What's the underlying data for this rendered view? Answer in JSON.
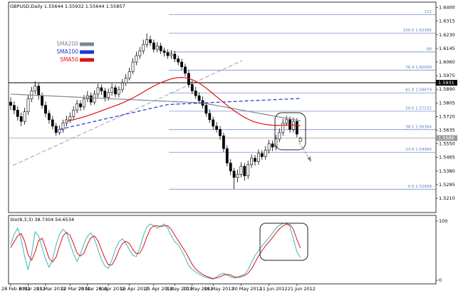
{
  "chart_data": [
    {
      "type": "candlestick",
      "title": "GBPUSD,Daily  1.55644 1.55932 1.55644 1.55857",
      "categories": [
        "28 Feb 2012",
        null,
        null,
        null,
        null,
        "6 Mar 2012",
        null,
        null,
        null,
        null,
        "13 Mar 2012",
        null,
        null,
        null,
        null,
        null,
        null,
        "22 Mar 2012",
        null,
        null,
        null,
        null,
        "29 Mar 2012",
        null,
        null,
        null,
        null,
        null,
        "6 Apr 2012",
        null,
        null,
        null,
        null,
        null,
        "16 Apr 2012",
        null,
        null,
        null,
        null,
        null,
        null,
        "25 Apr 2012",
        null,
        null,
        null,
        null,
        null,
        "3 May 2012",
        null,
        null,
        null,
        null,
        "10 May 2012",
        null,
        null,
        null,
        null,
        null,
        "18 May 2012",
        null,
        null,
        null,
        null,
        null,
        null,
        null,
        "30 May 2012",
        null,
        null,
        null,
        null,
        null,
        null,
        null,
        "11 Jun 2012",
        null,
        null,
        null,
        null,
        null,
        null,
        null,
        "21 Jun 2012",
        null
      ],
      "open": [
        1.581,
        1.579,
        1.576,
        1.572,
        1.569,
        1.575,
        1.583,
        1.588,
        1.591,
        1.585,
        1.579,
        1.574,
        1.57,
        1.566,
        1.562,
        1.564,
        1.568,
        1.57,
        1.572,
        1.576,
        1.58,
        1.578,
        1.583,
        1.585,
        1.581,
        1.586,
        1.59,
        1.588,
        1.584,
        1.587,
        1.59,
        1.586,
        1.589,
        1.593,
        1.596,
        1.6,
        1.606,
        1.61,
        1.613,
        1.617,
        1.62,
        1.618,
        1.614,
        1.616,
        1.613,
        1.612,
        1.61,
        1.611,
        1.608,
        1.606,
        1.603,
        1.599,
        1.592,
        1.588,
        1.585,
        1.582,
        1.579,
        1.574,
        1.57,
        1.566,
        1.564,
        1.56,
        1.552,
        1.543,
        1.538,
        1.534,
        1.536,
        1.541,
        1.535,
        1.542,
        1.546,
        1.544,
        1.549,
        1.547,
        1.551,
        1.555,
        1.553,
        1.558,
        1.562,
        1.568,
        1.57,
        1.564,
        1.569,
        1.55644
      ],
      "high": [
        1.584,
        1.5815,
        1.5785,
        1.5745,
        1.5775,
        1.5855,
        1.5905,
        1.594,
        1.593,
        1.587,
        1.5815,
        1.576,
        1.5725,
        1.568,
        1.5665,
        1.57,
        1.5725,
        1.5745,
        1.5785,
        1.5825,
        1.582,
        1.5855,
        1.588,
        1.587,
        1.5885,
        1.5925,
        1.592,
        1.59,
        1.5895,
        1.5925,
        1.592,
        1.591,
        1.5955,
        1.5985,
        1.6025,
        1.6085,
        1.6125,
        1.6155,
        1.62,
        1.62395,
        1.6225,
        1.62,
        1.6185,
        1.618,
        1.615,
        1.614,
        1.6135,
        1.613,
        1.61,
        1.608,
        1.605,
        1.601,
        1.5945,
        1.5905,
        1.587,
        1.5845,
        1.581,
        1.5765,
        1.572,
        1.5685,
        1.566,
        1.562,
        1.554,
        1.5455,
        1.54,
        1.539,
        1.5435,
        1.543,
        1.5445,
        1.5485,
        1.548,
        1.5515,
        1.551,
        1.5535,
        1.5575,
        1.557,
        1.5605,
        1.5645,
        1.5705,
        1.5725,
        1.572,
        1.5715,
        1.571,
        1.55932
      ],
      "low": [
        1.576,
        1.5735,
        1.5695,
        1.566,
        1.567,
        1.573,
        1.581,
        1.586,
        1.5825,
        1.577,
        1.5715,
        1.5675,
        1.564,
        1.56,
        1.5605,
        1.562,
        1.566,
        1.568,
        1.57,
        1.574,
        1.5755,
        1.576,
        1.581,
        1.579,
        1.5795,
        1.584,
        1.5855,
        1.5815,
        1.582,
        1.585,
        1.584,
        1.584,
        1.587,
        1.591,
        1.5945,
        1.5985,
        1.604,
        1.608,
        1.611,
        1.615,
        1.616,
        1.612,
        1.612,
        1.611,
        1.6095,
        1.608,
        1.608,
        1.606,
        1.604,
        1.601,
        1.597,
        1.59,
        1.586,
        1.583,
        1.58,
        1.577,
        1.572,
        1.568,
        1.564,
        1.562,
        1.5575,
        1.55,
        1.541,
        1.5355,
        1.52668,
        1.531,
        1.534,
        1.532,
        1.533,
        1.54,
        1.5415,
        1.542,
        1.545,
        1.545,
        1.549,
        1.5505,
        1.551,
        1.556,
        1.56,
        1.566,
        1.562,
        1.562,
        1.559,
        1.55644
      ],
      "close": [
        1.579,
        1.576,
        1.572,
        1.569,
        1.575,
        1.583,
        1.588,
        1.591,
        1.585,
        1.579,
        1.574,
        1.57,
        1.566,
        1.562,
        1.564,
        1.568,
        1.57,
        1.572,
        1.576,
        1.58,
        1.578,
        1.583,
        1.585,
        1.581,
        1.586,
        1.59,
        1.588,
        1.584,
        1.587,
        1.59,
        1.586,
        1.589,
        1.593,
        1.596,
        1.6,
        1.606,
        1.61,
        1.613,
        1.617,
        1.62,
        1.618,
        1.614,
        1.616,
        1.613,
        1.612,
        1.61,
        1.611,
        1.608,
        1.606,
        1.603,
        1.599,
        1.592,
        1.588,
        1.585,
        1.582,
        1.579,
        1.574,
        1.57,
        1.566,
        1.564,
        1.56,
        1.552,
        1.543,
        1.538,
        1.534,
        1.536,
        1.541,
        1.535,
        1.542,
        1.546,
        1.544,
        1.549,
        1.547,
        1.551,
        1.555,
        1.553,
        1.558,
        1.562,
        1.568,
        1.57,
        1.564,
        1.569,
        1.561,
        1.55857
      ],
      "series": [
        {
          "name": "SMA200",
          "color": "#7d879b",
          "style": "solid",
          "values": [
            1.586,
            1.5859,
            1.5858,
            1.5857,
            1.5856,
            1.5855,
            1.5854,
            1.5853,
            1.5852,
            1.5851,
            1.585,
            1.5849,
            1.5848,
            1.5847,
            1.5846,
            1.5845,
            1.5844,
            1.5843,
            1.5842,
            1.5841,
            1.584,
            1.5839,
            1.5838,
            1.5837,
            1.5836,
            1.5835,
            1.5834,
            1.5833,
            1.5832,
            1.5831,
            1.583,
            1.5829,
            1.5828,
            1.5827,
            1.5826,
            1.5825,
            1.5824,
            1.5823,
            1.5822,
            1.5821,
            1.582,
            1.5819,
            1.5818,
            1.5817,
            1.5816,
            1.5815,
            1.5814,
            1.5813,
            1.5812,
            1.5811,
            1.581,
            1.5809,
            1.5808,
            1.5807,
            1.5806,
            1.5805,
            1.5801,
            1.5797,
            1.5793,
            1.5789,
            1.5785,
            1.5781,
            1.5777,
            1.5773,
            1.5769,
            1.5765,
            1.5761,
            1.5757,
            1.5753,
            1.5749,
            1.5745,
            1.5741,
            1.5737,
            1.5733,
            1.5729,
            1.5725,
            1.5721,
            1.5717,
            1.5713,
            1.5709,
            1.5705,
            1.5701,
            1.5697,
            1.5693
          ]
        },
        {
          "name": "SMA100",
          "color": "#1f35d8",
          "style": "dashed",
          "values": [
            null,
            null,
            null,
            null,
            null,
            null,
            null,
            null,
            null,
            null,
            null,
            null,
            null,
            null,
            1.564,
            1.5645,
            1.565,
            1.5655,
            1.566,
            1.5665,
            1.567,
            1.5675,
            1.568,
            1.5685,
            1.569,
            1.5695,
            1.57,
            1.5705,
            1.571,
            1.5715,
            1.572,
            1.5725,
            1.573,
            1.5735,
            1.574,
            1.5745,
            1.575,
            1.5755,
            1.576,
            1.5765,
            1.577,
            1.5775,
            1.578,
            1.5785,
            1.579,
            1.5795,
            1.5796,
            1.5797,
            1.5798,
            1.5799,
            1.58,
            1.5801,
            1.5802,
            1.5803,
            1.5804,
            1.5805,
            1.5806,
            1.5807,
            1.5808,
            1.5809,
            1.581,
            1.5811,
            1.5812,
            1.5813,
            1.5814,
            1.5815,
            1.5816,
            1.5817,
            1.5818,
            1.5819,
            1.582,
            1.5821,
            1.5822,
            1.5823,
            1.5824,
            1.5825,
            1.5826,
            1.5827,
            1.5828,
            1.5829,
            1.583,
            1.5831,
            1.5832,
            1.5833
          ]
        },
        {
          "name": "SMA50",
          "color": "#e01010",
          "style": "solid",
          "values": [
            null,
            null,
            null,
            null,
            null,
            null,
            null,
            null,
            null,
            null,
            null,
            null,
            null,
            null,
            null,
            null,
            1.569,
            1.5695,
            1.57,
            1.5706,
            1.5712,
            1.5718,
            1.5725,
            1.5732,
            1.574,
            1.5748,
            1.5756,
            1.5764,
            1.5772,
            1.578,
            1.5788,
            1.5796,
            1.5805,
            1.5815,
            1.5825,
            1.5836,
            1.5848,
            1.586,
            1.5873,
            1.5886,
            1.5898,
            1.591,
            1.5921,
            1.5931,
            1.594,
            1.5948,
            1.5955,
            1.596,
            1.5963,
            1.5964,
            1.5962,
            1.5957,
            1.595,
            1.594,
            1.5928,
            1.5914,
            1.5898,
            1.588,
            1.5862,
            1.5844,
            1.5826,
            1.5808,
            1.579,
            1.5773,
            1.5757,
            1.5742,
            1.5728,
            1.5715,
            1.5704,
            1.5694,
            1.5686,
            1.568,
            1.5675,
            1.5671,
            1.5668,
            1.5666,
            1.5665,
            1.5665,
            1.5666,
            1.5668,
            1.5668,
            1.5667,
            1.5665,
            1.5662
          ]
        }
      ],
      "legend": "upper-left",
      "ylim": [
        1.513,
        1.6425
      ],
      "yticks": [
        {
          "value": 1.64,
          "label": "1.6400"
        },
        1.6315,
        {
          "value": 1.623,
          "label": "1.6230"
        },
        1.6145,
        {
          "value": 1.606,
          "label": "1.6060"
        },
        1.5975,
        {
          "value": 1.589,
          "label": "1.5890"
        },
        1.5805,
        {
          "value": 1.572,
          "label": "1.5720"
        },
        1.5635,
        {
          "value": 1.555,
          "label": "1.5550"
        },
        1.5465,
        {
          "value": 1.538,
          "label": "1.5380"
        },
        1.5295,
        {
          "value": 1.521,
          "label": "1.5210"
        }
      ],
      "fib_levels": [
        {
          "label": "112",
          "price": 1.63562
        },
        {
          "label": "100.0 1.62395",
          "price": 1.62395
        },
        {
          "label": "88",
          "price": 1.61228
        },
        {
          "label": "76.4 1.60099",
          "price": 1.60099
        },
        {
          "label": "61.8 1.58679",
          "price": 1.58679
        },
        {
          "label": "50.0 1.57532",
          "price": 1.57532
        },
        {
          "label": "38.2 1.56384",
          "price": 1.56384
        },
        {
          "label": "23.6 1.54964",
          "price": 1.54964
        },
        {
          "label": "0.0 1.52668",
          "price": 1.52668
        }
      ],
      "fib_color": "#5b7fc0",
      "horizontal_line": {
        "price": 1.5931,
        "label": "1.5931",
        "color": "#000000"
      },
      "last_price": {
        "price": 1.55857,
        "label": "1.5586",
        "color": "#9a9a9a"
      }
    },
    {
      "type": "line",
      "title": "Sto(8,3,3) 38.7304 54.6534",
      "ylim": [
        0,
        100
      ],
      "yticks": [
        0,
        100
      ],
      "series": [
        {
          "color": "#3cb8b8",
          "values": [
            60,
            78,
            88,
            70,
            40,
            18,
            45,
            82,
            75,
            55,
            35,
            22,
            35,
            60,
            78,
            86,
            80,
            62,
            45,
            32,
            45,
            62,
            75,
            80,
            70,
            52,
            35,
            24,
            20,
            35,
            52,
            65,
            70,
            62,
            52,
            42,
            40,
            55,
            75,
            90,
            95,
            92,
            88,
            92,
            95,
            88,
            75,
            65,
            60,
            50,
            38,
            25,
            18,
            14,
            10,
            7,
            5,
            3,
            2,
            6,
            10,
            12,
            9,
            6,
            4,
            5,
            8,
            10,
            18,
            30,
            42,
            50,
            58,
            65,
            72,
            80,
            88,
            93,
            96,
            97,
            90,
            70,
            48,
            38.7304
          ]
        },
        {
          "color": "#e01010",
          "values": [
            55,
            65,
            75,
            79,
            66,
            43,
            34,
            48,
            67,
            71,
            55,
            37,
            31,
            39,
            58,
            75,
            81,
            76,
            62,
            46,
            41,
            46,
            61,
            72,
            75,
            67,
            52,
            37,
            26,
            26,
            36,
            51,
            62,
            66,
            62,
            52,
            45,
            46,
            57,
            73,
            87,
            92,
            92,
            91,
            92,
            92,
            86,
            76,
            67,
            58,
            49,
            38,
            27,
            19,
            14,
            10,
            7,
            5,
            3,
            4,
            6,
            9,
            10,
            9,
            6,
            5,
            6,
            8,
            12,
            19,
            30,
            41,
            50,
            58,
            65,
            72,
            80,
            87,
            92,
            95,
            94,
            86,
            69,
            54.6534
          ]
        }
      ]
    }
  ]
}
